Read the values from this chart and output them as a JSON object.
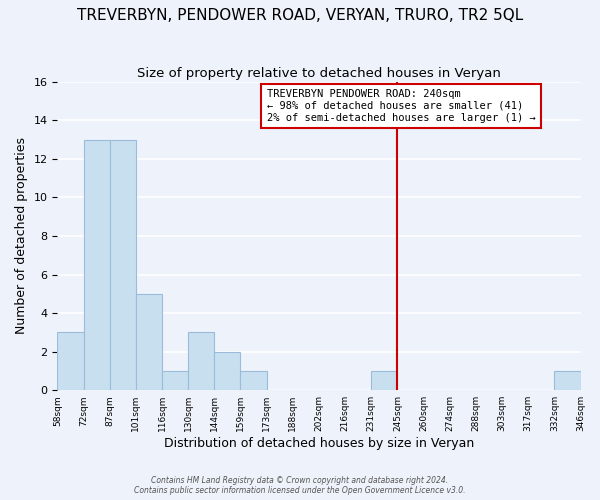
{
  "title": "TREVERBYN, PENDOWER ROAD, VERYAN, TRURO, TR2 5QL",
  "subtitle": "Size of property relative to detached houses in Veryan",
  "xlabel": "Distribution of detached houses by size in Veryan",
  "ylabel": "Number of detached properties",
  "bin_labels": [
    "58sqm",
    "72sqm",
    "87sqm",
    "101sqm",
    "116sqm",
    "130sqm",
    "144sqm",
    "159sqm",
    "173sqm",
    "188sqm",
    "202sqm",
    "216sqm",
    "231sqm",
    "245sqm",
    "260sqm",
    "274sqm",
    "288sqm",
    "303sqm",
    "317sqm",
    "332sqm",
    "346sqm"
  ],
  "bar_heights": [
    3,
    13,
    13,
    5,
    1,
    3,
    2,
    1,
    0,
    0,
    0,
    0,
    1,
    0,
    0,
    0,
    0,
    0,
    0,
    1
  ],
  "bar_color": "#c8dff0",
  "bar_edge_color": "#9bbcd8",
  "vline_color": "#cc0000",
  "annotation_title": "TREVERBYN PENDOWER ROAD: 240sqm",
  "annotation_line1": "← 98% of detached houses are smaller (41)",
  "annotation_line2": "2% of semi-detached houses are larger (1) →",
  "annotation_box_color": "#ffffff",
  "annotation_box_edge_color": "#cc0000",
  "ylim": [
    0,
    16
  ],
  "yticks": [
    0,
    2,
    4,
    6,
    8,
    10,
    12,
    14,
    16
  ],
  "footer_line1": "Contains HM Land Registry data © Crown copyright and database right 2024.",
  "footer_line2": "Contains public sector information licensed under the Open Government Licence v3.0.",
  "background_color": "#eef2fa",
  "grid_color": "#ffffff",
  "title_fontsize": 11,
  "subtitle_fontsize": 9.5
}
